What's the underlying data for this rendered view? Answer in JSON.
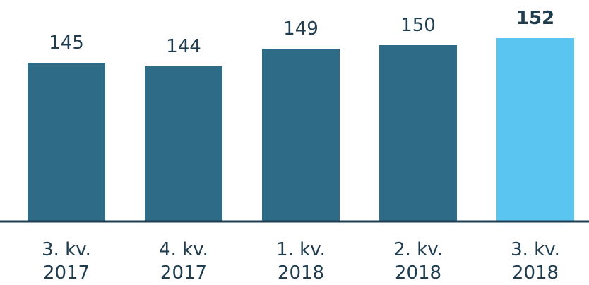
{
  "chart_data": {
    "type": "bar",
    "categories": [
      "3. kv. 2017",
      "4. kv. 2017",
      "1. kv. 2018",
      "2. kv. 2018",
      "3. kv. 2018"
    ],
    "values": [
      145,
      144,
      149,
      150,
      152
    ],
    "color": "#2e6b87",
    "highlight_index": 4,
    "highlight_color": "#5bc5f2",
    "ylim": [
      100,
      160
    ]
  }
}
